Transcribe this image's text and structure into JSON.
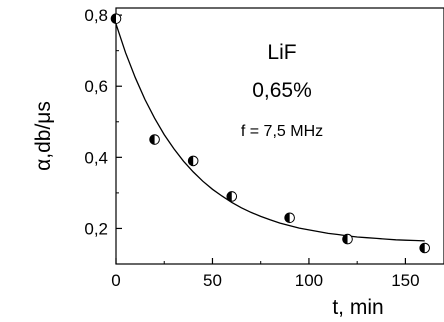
{
  "chart_data": {
    "type": "scatter",
    "title": "",
    "xlabel": "t, min",
    "ylabel": "α,db/μs",
    "xlim": [
      0,
      170
    ],
    "ylim": [
      0.1,
      0.82
    ],
    "x_ticks": [
      0,
      50,
      100,
      150
    ],
    "x_tick_labels": [
      "0",
      "50",
      "100",
      "150"
    ],
    "y_ticks": [
      0.2,
      0.4,
      0.6,
      0.8
    ],
    "y_tick_labels": [
      "0,2",
      "0,4",
      "0,6",
      "0,8"
    ],
    "grid": false,
    "legend": "none",
    "annotations": [
      "LiF",
      "0,65%",
      "f = 7,5 MHz"
    ],
    "series": [
      {
        "kind": "points",
        "marker": "half-filled-circle",
        "x": [
          0,
          20,
          40,
          60,
          90,
          120,
          160
        ],
        "y": [
          0.79,
          0.45,
          0.39,
          0.29,
          0.23,
          0.17,
          0.145
        ]
      },
      {
        "kind": "fit-line",
        "x": [
          0,
          5,
          10,
          15,
          20,
          25,
          30,
          35,
          40,
          45,
          50,
          55,
          60,
          65,
          70,
          75,
          80,
          85,
          90,
          95,
          100,
          105,
          110,
          115,
          120,
          125,
          130,
          135,
          140,
          145,
          150,
          155,
          160
        ],
        "y": [
          0.775,
          0.694,
          0.624,
          0.563,
          0.51,
          0.464,
          0.424,
          0.389,
          0.359,
          0.333,
          0.31,
          0.291,
          0.273,
          0.258,
          0.245,
          0.234,
          0.224,
          0.215,
          0.208,
          0.201,
          0.196,
          0.191,
          0.186,
          0.183,
          0.179,
          0.176,
          0.174,
          0.172,
          0.17,
          0.168,
          0.167,
          0.166,
          0.165
        ]
      }
    ]
  }
}
